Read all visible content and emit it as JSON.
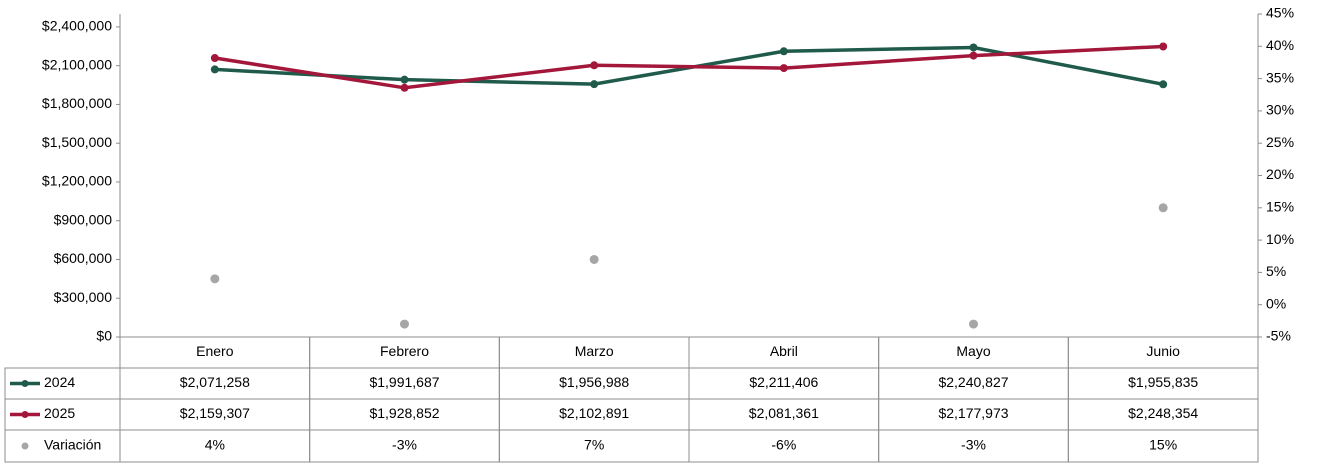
{
  "chart_data": {
    "type": "line",
    "categories": [
      "Enero",
      "Febrero",
      "Marzo",
      "Abril",
      "Mayo",
      "Junio"
    ],
    "series": [
      {
        "name": "2024",
        "color": "#1f5a4b",
        "values": [
          2071258,
          1991687,
          1956988,
          2211406,
          2240827,
          1955835
        ],
        "value_labels": [
          "$2,071,258",
          "$1,991,687",
          "$1,956,988",
          "$2,211,406",
          "$2,240,827",
          "$1,955,835"
        ]
      },
      {
        "name": "2025",
        "color": "#a3173b",
        "values": [
          2159307,
          1928852,
          2102891,
          2081361,
          2177973,
          2248354
        ],
        "value_labels": [
          "$2,159,307",
          "$1,928,852",
          "$2,102,891",
          "$2,081,361",
          "$2,177,973",
          "$2,248,354"
        ]
      },
      {
        "name": "Variación",
        "color": "#a6a6a6",
        "type": "scatter",
        "axis": "y2",
        "values": [
          4,
          -3,
          7,
          -6,
          -3,
          15
        ],
        "value_labels": [
          "4%",
          "-3%",
          "7%",
          "-6%",
          "-3%",
          "15%"
        ]
      }
    ],
    "ylim": [
      0,
      2500000
    ],
    "yticks": [
      {
        "value": 0,
        "label": "$0"
      },
      {
        "value": 300000,
        "label": "$300,000"
      },
      {
        "value": 600000,
        "label": "$600,000"
      },
      {
        "value": 900000,
        "label": "$900,000"
      },
      {
        "value": 1200000,
        "label": "$1,200,000"
      },
      {
        "value": 1500000,
        "label": "$1,500,000"
      },
      {
        "value": 1800000,
        "label": "$1,800,000"
      },
      {
        "value": 2100000,
        "label": "$2,100,000"
      },
      {
        "value": 2400000,
        "label": "$2,400,000"
      }
    ],
    "y2lim": [
      -5,
      45
    ],
    "y2ticks": [
      {
        "value": -5,
        "label": "-5%"
      },
      {
        "value": 0,
        "label": "0%"
      },
      {
        "value": 5,
        "label": "5%"
      },
      {
        "value": 10,
        "label": "10%"
      },
      {
        "value": 15,
        "label": "15%"
      },
      {
        "value": 20,
        "label": "20%"
      },
      {
        "value": 25,
        "label": "25%"
      },
      {
        "value": 30,
        "label": "30%"
      },
      {
        "value": 35,
        "label": "35%"
      },
      {
        "value": 40,
        "label": "40%"
      },
      {
        "value": 45,
        "label": "45%"
      }
    ],
    "grid": false
  }
}
